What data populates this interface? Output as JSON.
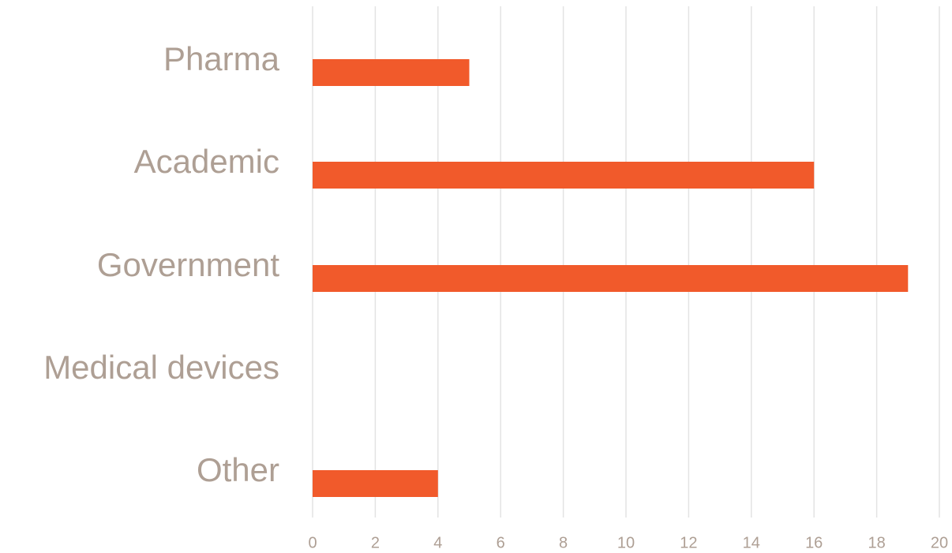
{
  "chart_data": {
    "type": "bar",
    "orientation": "horizontal",
    "title": "",
    "xlabel": "",
    "ylabel": "",
    "categories": [
      "Pharma",
      "Academic",
      "Government",
      "Medical devices",
      "Other"
    ],
    "values": [
      5,
      16,
      19,
      0,
      4
    ],
    "xlim": [
      0,
      20
    ],
    "ticks": [
      0,
      2,
      4,
      6,
      8,
      10,
      12,
      14,
      16,
      18,
      20
    ],
    "tick_labels": [
      "0",
      "2",
      "4",
      "6",
      "8",
      "10",
      "12",
      "14",
      "16",
      "18",
      "20"
    ],
    "grid": "vertical",
    "legend": "none",
    "colors": {
      "bar": "#f15a2b",
      "category_text": "#ae9f94",
      "tick_text": "#ae9f94",
      "grid": "#e3e3e3"
    }
  }
}
